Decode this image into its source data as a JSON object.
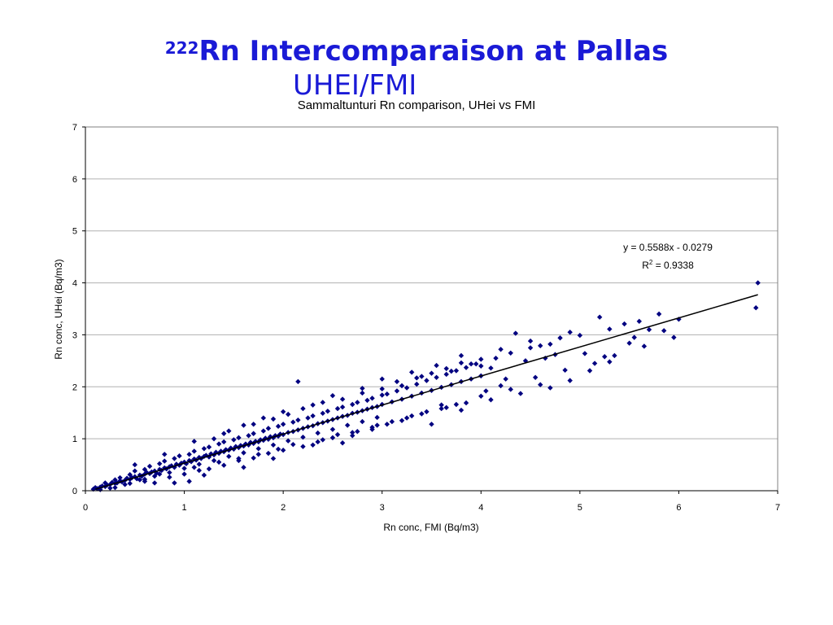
{
  "slide": {
    "title_sup": "222",
    "title_main": "Rn Intercomparaison at Pallas",
    "title_line2": "UHEI/FMI"
  },
  "chart_data": {
    "type": "scatter",
    "title": "Sammaltunturi Rn comparison, UHei vs FMI",
    "xlabel": "Rn conc, FMI (Bq/m3)",
    "ylabel": "Rn conc, UHei (Bq/m3)",
    "xlim": [
      0,
      7
    ],
    "ylim": [
      0,
      7
    ],
    "xticks": [
      "0",
      "1",
      "2",
      "3",
      "4",
      "5",
      "6",
      "7"
    ],
    "yticks": [
      "0",
      "1",
      "2",
      "3",
      "4",
      "5",
      "6",
      "7"
    ],
    "grid": "horizontal",
    "marker_color": "#000080",
    "trendline": {
      "slope": 0.5588,
      "intercept": -0.0279,
      "x_range": [
        0.1,
        6.8
      ],
      "equation_text": "y = 0.5588x - 0.0279",
      "r2_prefix": "R",
      "r2_sup": "2",
      "r2_value": " = 0.9338"
    },
    "series": [
      {
        "points": [
          [
            0.08,
            0.03
          ],
          [
            0.1,
            0.06
          ],
          [
            0.12,
            0.04
          ],
          [
            0.15,
            0.07
          ],
          [
            0.17,
            0.09
          ],
          [
            0.2,
            0.08
          ],
          [
            0.22,
            0.11
          ],
          [
            0.25,
            0.12
          ],
          [
            0.27,
            0.16
          ],
          [
            0.3,
            0.14
          ],
          [
            0.32,
            0.15
          ],
          [
            0.35,
            0.19
          ],
          [
            0.37,
            0.17
          ],
          [
            0.4,
            0.2
          ],
          [
            0.42,
            0.24
          ],
          [
            0.45,
            0.22
          ],
          [
            0.47,
            0.25
          ],
          [
            0.5,
            0.27
          ],
          [
            0.52,
            0.23
          ],
          [
            0.55,
            0.3
          ],
          [
            0.57,
            0.28
          ],
          [
            0.6,
            0.32
          ],
          [
            0.62,
            0.35
          ],
          [
            0.65,
            0.33
          ],
          [
            0.67,
            0.36
          ],
          [
            0.7,
            0.38
          ],
          [
            0.72,
            0.34
          ],
          [
            0.75,
            0.41
          ],
          [
            0.77,
            0.39
          ],
          [
            0.8,
            0.44
          ],
          [
            0.82,
            0.42
          ],
          [
            0.85,
            0.46
          ],
          [
            0.87,
            0.48
          ],
          [
            0.9,
            0.45
          ],
          [
            0.92,
            0.51
          ],
          [
            0.95,
            0.49
          ],
          [
            0.97,
            0.53
          ],
          [
            1.0,
            0.55
          ],
          [
            1.02,
            0.52
          ],
          [
            1.05,
            0.58
          ],
          [
            1.07,
            0.56
          ],
          [
            1.1,
            0.61
          ],
          [
            1.12,
            0.59
          ],
          [
            1.15,
            0.64
          ],
          [
            1.17,
            0.62
          ],
          [
            1.2,
            0.66
          ],
          [
            1.22,
            0.68
          ],
          [
            1.25,
            0.65
          ],
          [
            1.27,
            0.71
          ],
          [
            1.3,
            0.69
          ],
          [
            1.32,
            0.74
          ],
          [
            1.35,
            0.72
          ],
          [
            1.37,
            0.76
          ],
          [
            1.4,
            0.75
          ],
          [
            1.42,
            0.79
          ],
          [
            1.45,
            0.78
          ],
          [
            1.47,
            0.82
          ],
          [
            1.5,
            0.8
          ],
          [
            1.52,
            0.85
          ],
          [
            1.55,
            0.83
          ],
          [
            1.57,
            0.87
          ],
          [
            1.6,
            0.86
          ],
          [
            1.62,
            0.9
          ],
          [
            1.65,
            0.88
          ],
          [
            1.67,
            0.93
          ],
          [
            1.7,
            0.91
          ],
          [
            1.72,
            0.95
          ],
          [
            1.75,
            0.94
          ],
          [
            1.77,
            0.98
          ],
          [
            1.8,
            0.97
          ],
          [
            1.82,
            1.01
          ],
          [
            1.85,
            0.99
          ],
          [
            1.87,
            1.04
          ],
          [
            1.9,
            1.02
          ],
          [
            1.92,
            1.06
          ],
          [
            1.95,
            1.05
          ],
          [
            1.97,
            1.09
          ],
          [
            2.0,
            1.08
          ],
          [
            2.05,
            1.12
          ],
          [
            2.1,
            1.14
          ],
          [
            2.15,
            1.17
          ],
          [
            2.2,
            1.2
          ],
          [
            2.25,
            1.23
          ],
          [
            2.3,
            1.25
          ],
          [
            2.35,
            1.29
          ],
          [
            2.4,
            1.31
          ],
          [
            2.45,
            1.34
          ],
          [
            2.5,
            1.37
          ],
          [
            2.55,
            1.4
          ],
          [
            2.6,
            1.43
          ],
          [
            2.65,
            1.45
          ],
          [
            2.7,
            1.49
          ],
          [
            2.75,
            1.51
          ],
          [
            2.8,
            1.54
          ],
          [
            2.85,
            1.57
          ],
          [
            2.9,
            1.6
          ],
          [
            2.95,
            1.62
          ],
          [
            3.0,
            1.66
          ],
          [
            3.1,
            1.71
          ],
          [
            3.2,
            1.76
          ],
          [
            3.3,
            1.82
          ],
          [
            3.4,
            1.88
          ],
          [
            3.5,
            1.93
          ],
          [
            3.6,
            1.99
          ],
          [
            3.7,
            2.04
          ],
          [
            3.8,
            2.1
          ],
          [
            3.9,
            2.15
          ],
          [
            4.0,
            2.21
          ],
          [
            0.3,
            0.21
          ],
          [
            0.45,
            0.31
          ],
          [
            0.6,
            0.41
          ],
          [
            0.75,
            0.52
          ],
          [
            0.9,
            0.62
          ],
          [
            1.05,
            0.7
          ],
          [
            1.2,
            0.81
          ],
          [
            1.35,
            0.9
          ],
          [
            1.5,
            0.98
          ],
          [
            1.65,
            1.06
          ],
          [
            1.8,
            1.15
          ],
          [
            1.95,
            1.24
          ],
          [
            2.1,
            1.32
          ],
          [
            2.25,
            1.4
          ],
          [
            2.4,
            1.49
          ],
          [
            2.55,
            1.58
          ],
          [
            2.7,
            1.66
          ],
          [
            2.85,
            1.74
          ],
          [
            3.0,
            1.84
          ],
          [
            0.4,
            0.12
          ],
          [
            0.55,
            0.21
          ],
          [
            0.7,
            0.28
          ],
          [
            0.85,
            0.35
          ],
          [
            1.0,
            0.43
          ],
          [
            1.15,
            0.51
          ],
          [
            1.3,
            0.58
          ],
          [
            1.45,
            0.66
          ],
          [
            1.6,
            0.73
          ],
          [
            1.75,
            0.81
          ],
          [
            1.9,
            0.88
          ],
          [
            2.05,
            0.96
          ],
          [
            2.2,
            1.03
          ],
          [
            2.35,
            1.11
          ],
          [
            2.5,
            1.18
          ],
          [
            2.65,
            1.26
          ],
          [
            2.8,
            1.33
          ],
          [
            2.95,
            1.41
          ],
          [
            0.9,
            0.15
          ],
          [
            1.05,
            0.18
          ],
          [
            1.2,
            0.3
          ],
          [
            1.6,
            0.45
          ],
          [
            1.9,
            0.62
          ],
          [
            2.3,
            0.88
          ],
          [
            2.6,
            0.92
          ],
          [
            2.7,
            1.06
          ],
          [
            2.9,
            1.18
          ],
          [
            3.2,
            1.35
          ],
          [
            3.5,
            1.28
          ],
          [
            3.6,
            1.65
          ],
          [
            3.8,
            1.55
          ],
          [
            4.0,
            1.82
          ],
          [
            4.1,
            1.75
          ],
          [
            4.4,
            1.87
          ],
          [
            4.6,
            2.04
          ],
          [
            4.7,
            1.98
          ],
          [
            4.9,
            2.12
          ],
          [
            5.1,
            2.31
          ],
          [
            5.3,
            2.48
          ],
          [
            0.5,
            0.5
          ],
          [
            0.8,
            0.7
          ],
          [
            1.1,
            0.95
          ],
          [
            1.4,
            1.1
          ],
          [
            1.6,
            1.26
          ],
          [
            1.8,
            1.4
          ],
          [
            2.0,
            1.52
          ],
          [
            2.15,
            2.1
          ],
          [
            2.3,
            1.65
          ],
          [
            2.5,
            1.83
          ],
          [
            2.8,
            1.97
          ],
          [
            3.0,
            2.15
          ],
          [
            3.3,
            2.28
          ],
          [
            3.55,
            2.41
          ],
          [
            3.8,
            2.6
          ],
          [
            4.0,
            2.53
          ],
          [
            4.2,
            2.72
          ],
          [
            4.35,
            3.03
          ],
          [
            4.5,
            2.88
          ],
          [
            4.6,
            2.79
          ],
          [
            4.8,
            2.94
          ],
          [
            4.9,
            3.05
          ],
          [
            5.0,
            2.99
          ],
          [
            5.2,
            3.34
          ],
          [
            5.3,
            3.11
          ],
          [
            5.45,
            3.21
          ],
          [
            5.6,
            3.26
          ],
          [
            5.7,
            3.1
          ],
          [
            5.8,
            3.4
          ],
          [
            5.95,
            2.95
          ],
          [
            6.0,
            3.3
          ],
          [
            6.78,
            3.52
          ],
          [
            6.8,
            4.0
          ],
          [
            3.2,
            2.02
          ],
          [
            3.4,
            2.2
          ],
          [
            3.7,
            2.3
          ],
          [
            3.9,
            2.44
          ],
          [
            4.1,
            2.36
          ],
          [
            4.25,
            2.15
          ],
          [
            4.45,
            2.5
          ],
          [
            4.65,
            2.55
          ],
          [
            4.75,
            2.62
          ],
          [
            5.05,
            2.64
          ],
          [
            5.25,
            2.58
          ],
          [
            5.5,
            2.84
          ],
          [
            5.55,
            2.95
          ],
          [
            0.2,
            0.15
          ],
          [
            0.25,
            0.05
          ],
          [
            0.35,
            0.25
          ],
          [
            0.5,
            0.38
          ],
          [
            0.65,
            0.47
          ],
          [
            0.8,
            0.57
          ],
          [
            0.95,
            0.67
          ],
          [
            1.1,
            0.76
          ],
          [
            1.25,
            0.84
          ],
          [
            1.4,
            0.94
          ],
          [
            1.55,
            1.02
          ],
          [
            1.7,
            1.1
          ],
          [
            1.85,
            1.2
          ],
          [
            2.0,
            1.28
          ],
          [
            2.15,
            1.36
          ],
          [
            2.3,
            1.44
          ],
          [
            2.45,
            1.53
          ],
          [
            2.6,
            1.61
          ],
          [
            2.75,
            1.7
          ],
          [
            2.9,
            1.78
          ],
          [
            3.05,
            1.86
          ],
          [
            3.15,
            1.92
          ],
          [
            3.25,
            1.98
          ],
          [
            3.35,
            2.05
          ],
          [
            3.45,
            2.12
          ],
          [
            3.55,
            2.18
          ],
          [
            3.65,
            2.24
          ],
          [
            3.75,
            2.31
          ],
          [
            3.85,
            2.37
          ],
          [
            3.95,
            2.44
          ],
          [
            0.6,
            0.22
          ],
          [
            0.75,
            0.32
          ],
          [
            1.1,
            0.45
          ],
          [
            1.35,
            0.55
          ],
          [
            1.55,
            0.62
          ],
          [
            1.75,
            0.7
          ],
          [
            1.95,
            0.8
          ],
          [
            2.1,
            0.89
          ],
          [
            2.4,
            0.98
          ],
          [
            2.55,
            1.08
          ],
          [
            2.75,
            1.14
          ],
          [
            2.95,
            1.26
          ],
          [
            3.1,
            1.33
          ],
          [
            3.3,
            1.44
          ],
          [
            3.45,
            1.52
          ],
          [
            3.65,
            1.6
          ],
          [
            3.85,
            1.69
          ],
          [
            4.05,
            1.92
          ],
          [
            4.2,
            2.02
          ],
          [
            4.3,
            1.95
          ],
          [
            4.55,
            2.18
          ],
          [
            4.85,
            2.32
          ],
          [
            5.15,
            2.45
          ],
          [
            5.35,
            2.6
          ],
          [
            5.65,
            2.78
          ],
          [
            5.85,
            3.08
          ],
          [
            1.3,
            1.0
          ],
          [
            1.45,
            1.15
          ],
          [
            1.7,
            1.28
          ],
          [
            1.9,
            1.38
          ],
          [
            2.05,
            1.47
          ],
          [
            2.2,
            1.58
          ],
          [
            2.4,
            1.7
          ],
          [
            2.6,
            1.76
          ],
          [
            2.8,
            1.88
          ],
          [
            3.0,
            1.96
          ],
          [
            3.15,
            2.1
          ],
          [
            3.35,
            2.17
          ],
          [
            3.5,
            2.26
          ],
          [
            3.65,
            2.35
          ],
          [
            3.8,
            2.46
          ],
          [
            4.0,
            2.4
          ],
          [
            4.15,
            2.55
          ],
          [
            4.3,
            2.65
          ],
          [
            4.5,
            2.75
          ],
          [
            4.7,
            2.82
          ],
          [
            0.15,
            0.02
          ],
          [
            0.3,
            0.06
          ],
          [
            0.45,
            0.14
          ],
          [
            0.6,
            0.18
          ],
          [
            0.7,
            0.15
          ],
          [
            0.85,
            0.26
          ],
          [
            1.0,
            0.32
          ],
          [
            1.15,
            0.39
          ],
          [
            1.25,
            0.42
          ],
          [
            1.4,
            0.49
          ],
          [
            1.55,
            0.58
          ],
          [
            1.7,
            0.63
          ],
          [
            1.85,
            0.72
          ],
          [
            2.0,
            0.78
          ],
          [
            2.2,
            0.85
          ],
          [
            2.35,
            0.94
          ],
          [
            2.5,
            1.02
          ],
          [
            2.7,
            1.12
          ],
          [
            2.9,
            1.22
          ],
          [
            3.05,
            1.28
          ],
          [
            3.25,
            1.4
          ],
          [
            3.4,
            1.48
          ],
          [
            3.6,
            1.58
          ],
          [
            3.75,
            1.66
          ]
        ]
      }
    ]
  }
}
